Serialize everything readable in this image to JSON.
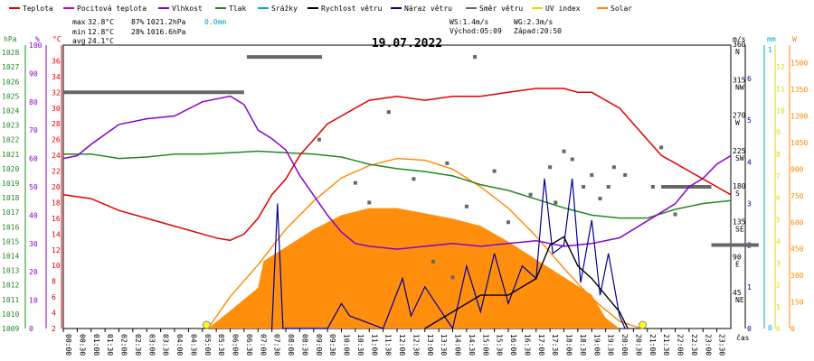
{
  "chart_data": {
    "type": "line",
    "title": "19.07.2022",
    "legend": [
      {
        "name": "Teplota",
        "color": "#e00000"
      },
      {
        "name": "Pocitová teplota",
        "color": "#cc00cc"
      },
      {
        "name": "Vlhkost",
        "color": "#8800cc"
      },
      {
        "name": "Tlak",
        "color": "#228822"
      },
      {
        "name": "Srážky",
        "color": "#00aacc"
      },
      {
        "name": "Rychlost větru",
        "color": "#000000"
      },
      {
        "name": "Náraz větru",
        "color": "#000099"
      },
      {
        "name": "Směr větru",
        "color": "#666666"
      },
      {
        "name": "UV index",
        "color": "#dddd00"
      },
      {
        "name": "Solar",
        "color": "#ff8800"
      }
    ],
    "stats": {
      "max": [
        "max",
        "32.8°C",
        "87%",
        "1021.2hPa",
        "0.0mm"
      ],
      "min": [
        "min",
        "12.8°C",
        "28%",
        "1016.6hPa"
      ],
      "avg": [
        "avg",
        "24.1°C"
      ],
      "ws": "WS:1.4m/s",
      "wg": "WG:2.3m/s",
      "sunrise": "Východ:05:09",
      "sunset": "Západ:20:50"
    },
    "axis_units": {
      "hpa": "hPa",
      "pct": "%",
      "temp": "°C",
      "ms": "m/s",
      "mm": "mm",
      "w": "W",
      "x": "čas"
    },
    "x_ticks": [
      "00:00",
      "00:30",
      "01:00",
      "01:30",
      "02:00",
      "02:30",
      "03:00",
      "03:30",
      "04:00",
      "04:30",
      "05:00",
      "05:30",
      "06:00",
      "06:30",
      "07:00",
      "07:30",
      "08:00",
      "08:30",
      "09:00",
      "09:30",
      "10:00",
      "10:30",
      "11:00",
      "11:30",
      "12:00",
      "12:30",
      "13:00",
      "13:30",
      "14:00",
      "14:30",
      "15:00",
      "15:30",
      "16:00",
      "16:30",
      "17:00",
      "17:30",
      "18:00",
      "18:30",
      "19:00",
      "19:30",
      "20:00",
      "20:30",
      "21:00",
      "21:30",
      "22:00",
      "22:30",
      "23:00",
      "23:30"
    ],
    "hpa_ticks": [
      "1009",
      "1010",
      "1011",
      "1012",
      "1013",
      "1014",
      "1015",
      "1016",
      "1017",
      "1018",
      "1019",
      "1020",
      "1021",
      "1022",
      "1023",
      "1024",
      "1025",
      "1026",
      "1027",
      "1028"
    ],
    "hpa_range": [
      1009,
      1028.5
    ],
    "pct_ticks": [
      "0",
      "10",
      "20",
      "30",
      "40",
      "50",
      "60",
      "70",
      "80",
      "90",
      "100"
    ],
    "pct_range": [
      0,
      100
    ],
    "temp_ticks": [
      "2",
      "4",
      "6",
      "8",
      "10",
      "12",
      "14",
      "16",
      "18",
      "20",
      "22",
      "24",
      "26",
      "28",
      "30",
      "32",
      "34",
      "36"
    ],
    "temp_range": [
      2,
      38
    ],
    "dir_ticks": [
      "45\nNE",
      "90\nE",
      "135\nSE",
      "180\nS",
      "225\nSW",
      "270\nW",
      "315\nNW",
      "360\nN"
    ],
    "dir_range": [
      0,
      360
    ],
    "ms_ticks": [
      "0",
      "1",
      "2",
      "3",
      "4",
      "5",
      "6"
    ],
    "ms_range": [
      0,
      6.8
    ],
    "mm_ticks": [
      "0",
      "1"
    ],
    "uv_ticks": [
      "0",
      "1",
      "2",
      "3",
      "4",
      "5",
      "6",
      "7",
      "8",
      "9",
      "10",
      "11",
      "12"
    ],
    "w_ticks": [
      "0",
      "150",
      "300",
      "450",
      "600",
      "750",
      "900",
      "1050",
      "1200",
      "1350",
      "1500"
    ],
    "w_range": [
      0,
      1600
    ],
    "temperature": [
      [
        0,
        19
      ],
      [
        1,
        18.5
      ],
      [
        2,
        17
      ],
      [
        3,
        16
      ],
      [
        4,
        15
      ],
      [
        5,
        14
      ],
      [
        5.5,
        13.5
      ],
      [
        6,
        13.2
      ],
      [
        6.5,
        14
      ],
      [
        7,
        16
      ],
      [
        7.5,
        19
      ],
      [
        8,
        21
      ],
      [
        8.5,
        24
      ],
      [
        9,
        26
      ],
      [
        9.5,
        28
      ],
      [
        10,
        29
      ],
      [
        11,
        31
      ],
      [
        12,
        31.5
      ],
      [
        13,
        31
      ],
      [
        14,
        31.5
      ],
      [
        15,
        31.5
      ],
      [
        16,
        32
      ],
      [
        17,
        32.5
      ],
      [
        18,
        32.5
      ],
      [
        18.5,
        32
      ],
      [
        19,
        32
      ],
      [
        19.5,
        31
      ],
      [
        20,
        30
      ],
      [
        20.5,
        28
      ],
      [
        21,
        26
      ],
      [
        21.5,
        24
      ],
      [
        22,
        23
      ],
      [
        22.5,
        22
      ],
      [
        23,
        21
      ],
      [
        23.5,
        20
      ],
      [
        24,
        19
      ]
    ],
    "humidity": [
      [
        0,
        60
      ],
      [
        0.5,
        61
      ],
      [
        1,
        65
      ],
      [
        2,
        72
      ],
      [
        3,
        74
      ],
      [
        4,
        75
      ],
      [
        5,
        80
      ],
      [
        6,
        82
      ],
      [
        6.5,
        79
      ],
      [
        7,
        70
      ],
      [
        7.5,
        67
      ],
      [
        8,
        63
      ],
      [
        8.5,
        54
      ],
      [
        9,
        47
      ],
      [
        9.5,
        40
      ],
      [
        10,
        34
      ],
      [
        10.5,
        30
      ],
      [
        11,
        29
      ],
      [
        12,
        28
      ],
      [
        13,
        29
      ],
      [
        14,
        30
      ],
      [
        15,
        29
      ],
      [
        16,
        30
      ],
      [
        17,
        31
      ],
      [
        18,
        29
      ],
      [
        19,
        30
      ],
      [
        20,
        32
      ],
      [
        20.5,
        35
      ],
      [
        21,
        38
      ],
      [
        21.5,
        41
      ],
      [
        22,
        44
      ],
      [
        22.5,
        50
      ],
      [
        23,
        53
      ],
      [
        23.5,
        58
      ],
      [
        24,
        61
      ]
    ],
    "pressure": [
      [
        0,
        1021
      ],
      [
        1,
        1021
      ],
      [
        2,
        1020.7
      ],
      [
        3,
        1020.8
      ],
      [
        4,
        1021
      ],
      [
        5,
        1021
      ],
      [
        6,
        1021.1
      ],
      [
        7,
        1021.2
      ],
      [
        8,
        1021.1
      ],
      [
        9,
        1021
      ],
      [
        10,
        1020.8
      ],
      [
        11,
        1020.3
      ],
      [
        12,
        1020
      ],
      [
        13,
        1019.8
      ],
      [
        14,
        1019.5
      ],
      [
        15,
        1018.9
      ],
      [
        16,
        1018.5
      ],
      [
        17,
        1017.9
      ],
      [
        18,
        1017.3
      ],
      [
        19,
        1016.8
      ],
      [
        20,
        1016.6
      ],
      [
        21,
        1016.6
      ],
      [
        21.5,
        1016.9
      ],
      [
        22,
        1017.2
      ],
      [
        23,
        1017.6
      ],
      [
        24,
        1017.8
      ]
    ],
    "solar": [
      [
        5.2,
        0
      ],
      [
        6,
        100
      ],
      [
        7,
        230
      ],
      [
        7.2,
        380
      ],
      [
        8,
        460
      ],
      [
        9,
        560
      ],
      [
        10,
        640
      ],
      [
        11,
        680
      ],
      [
        12,
        680
      ],
      [
        13,
        650
      ],
      [
        14,
        620
      ],
      [
        15,
        580
      ],
      [
        16,
        490
      ],
      [
        17,
        390
      ],
      [
        18,
        290
      ],
      [
        19,
        190
      ],
      [
        19.5,
        60
      ],
      [
        20,
        0
      ]
    ],
    "solar_max_theory": [
      [
        5.2,
        0
      ],
      [
        6,
        180
      ],
      [
        7,
        360
      ],
      [
        8,
        560
      ],
      [
        9,
        720
      ],
      [
        10,
        850
      ],
      [
        11,
        920
      ],
      [
        12,
        960
      ],
      [
        13,
        950
      ],
      [
        14,
        900
      ],
      [
        15,
        800
      ],
      [
        16,
        680
      ],
      [
        17,
        520
      ],
      [
        18,
        340
      ],
      [
        19,
        170
      ],
      [
        20,
        40
      ],
      [
        20.8,
        0
      ]
    ],
    "gust": [
      [
        7.5,
        0
      ],
      [
        7.7,
        3
      ],
      [
        7.9,
        0
      ],
      [
        8.2,
        0
      ],
      [
        9.5,
        0
      ],
      [
        10,
        0.6
      ],
      [
        10.3,
        0.3
      ],
      [
        11.5,
        0
      ],
      [
        12.2,
        1.2
      ],
      [
        12.5,
        0.3
      ],
      [
        13,
        1
      ],
      [
        13.5,
        0.5
      ],
      [
        14,
        0
      ],
      [
        14.5,
        1.5
      ],
      [
        15,
        0.4
      ],
      [
        15.5,
        1.8
      ],
      [
        16,
        0.6
      ],
      [
        16.5,
        1.5
      ],
      [
        17,
        1.2
      ],
      [
        17.3,
        3.6
      ],
      [
        17.6,
        1.8
      ],
      [
        18,
        2
      ],
      [
        18.3,
        3.6
      ],
      [
        18.6,
        1.1
      ],
      [
        19,
        2.6
      ],
      [
        19.3,
        0.8
      ],
      [
        19.6,
        1.8
      ],
      [
        20,
        0.3
      ],
      [
        20.2,
        0
      ]
    ],
    "wind_speed": [
      [
        13,
        0
      ],
      [
        14,
        0.4
      ],
      [
        15,
        0.8
      ],
      [
        16,
        0.8
      ],
      [
        17,
        1.2
      ],
      [
        17.5,
        2
      ],
      [
        18,
        2.2
      ],
      [
        18.5,
        1.5
      ],
      [
        19,
        1.2
      ],
      [
        19.5,
        0.8
      ],
      [
        20,
        0.4
      ],
      [
        20.3,
        0
      ]
    ],
    "wind_dir_lines": [
      [
        0,
        300
      ],
      [
        6.5,
        300
      ]
    ],
    "wind_dir_lines2": [
      [
        6.6,
        345
      ],
      [
        9.3,
        345
      ]
    ],
    "wind_dir_lines3": [
      [
        21.5,
        180
      ],
      [
        23.3,
        180
      ]
    ],
    "wind_dir_lines4": [
      [
        23.3,
        106
      ],
      [
        25,
        106
      ]
    ],
    "wind_dir_points": [
      [
        9.2,
        240
      ],
      [
        10.5,
        185
      ],
      [
        11,
        160
      ],
      [
        11.7,
        275
      ],
      [
        12.6,
        190
      ],
      [
        13.3,
        85
      ],
      [
        13.8,
        210
      ],
      [
        14,
        65
      ],
      [
        14.5,
        155
      ],
      [
        14.8,
        345
      ],
      [
        15.5,
        200
      ],
      [
        16,
        135
      ],
      [
        16.8,
        170
      ],
      [
        17.5,
        205
      ],
      [
        17.7,
        160
      ],
      [
        18,
        225
      ],
      [
        18.3,
        215
      ],
      [
        18.7,
        180
      ],
      [
        19,
        195
      ],
      [
        19.3,
        165
      ],
      [
        19.6,
        180
      ],
      [
        19.8,
        205
      ],
      [
        20.2,
        195
      ],
      [
        21.2,
        180
      ],
      [
        21.5,
        230
      ],
      [
        22,
        145
      ]
    ]
  }
}
